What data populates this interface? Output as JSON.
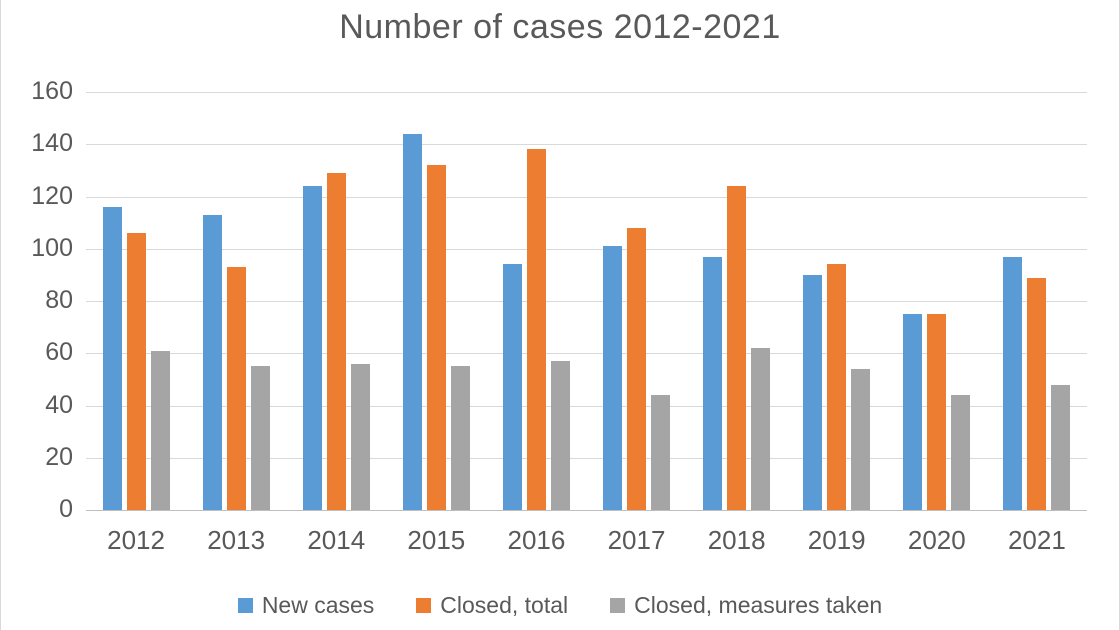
{
  "chart_data": {
    "type": "bar",
    "title": "Number of cases 2012-2021",
    "categories": [
      "2012",
      "2013",
      "2014",
      "2015",
      "2016",
      "2017",
      "2018",
      "2019",
      "2020",
      "2021"
    ],
    "series": [
      {
        "name": "New cases",
        "color": "#5B9BD5",
        "values": [
          116,
          113,
          124,
          144,
          94,
          101,
          97,
          90,
          75,
          97
        ]
      },
      {
        "name": "Closed, total",
        "color": "#ED7D31",
        "values": [
          106,
          93,
          129,
          132,
          138,
          108,
          124,
          94,
          75,
          89
        ]
      },
      {
        "name": "Closed, measures taken",
        "color": "#A5A5A5",
        "values": [
          61,
          55,
          56,
          55,
          57,
          44,
          62,
          54,
          44,
          48
        ]
      }
    ],
    "y_axis": {
      "min": 0,
      "max": 160,
      "step": 20,
      "tick_labels": [
        "160",
        "140",
        "120",
        "100",
        "80",
        "60",
        "40",
        "20",
        "0"
      ]
    },
    "xlabel": "",
    "ylabel": "",
    "grid": true,
    "legend_position": "bottom",
    "colors": {
      "title_text": "#595959",
      "axis_text": "#595959",
      "gridline": "#D9D9D9",
      "axis_line": "#BFBFBF",
      "background": "#FFFFFF"
    }
  }
}
